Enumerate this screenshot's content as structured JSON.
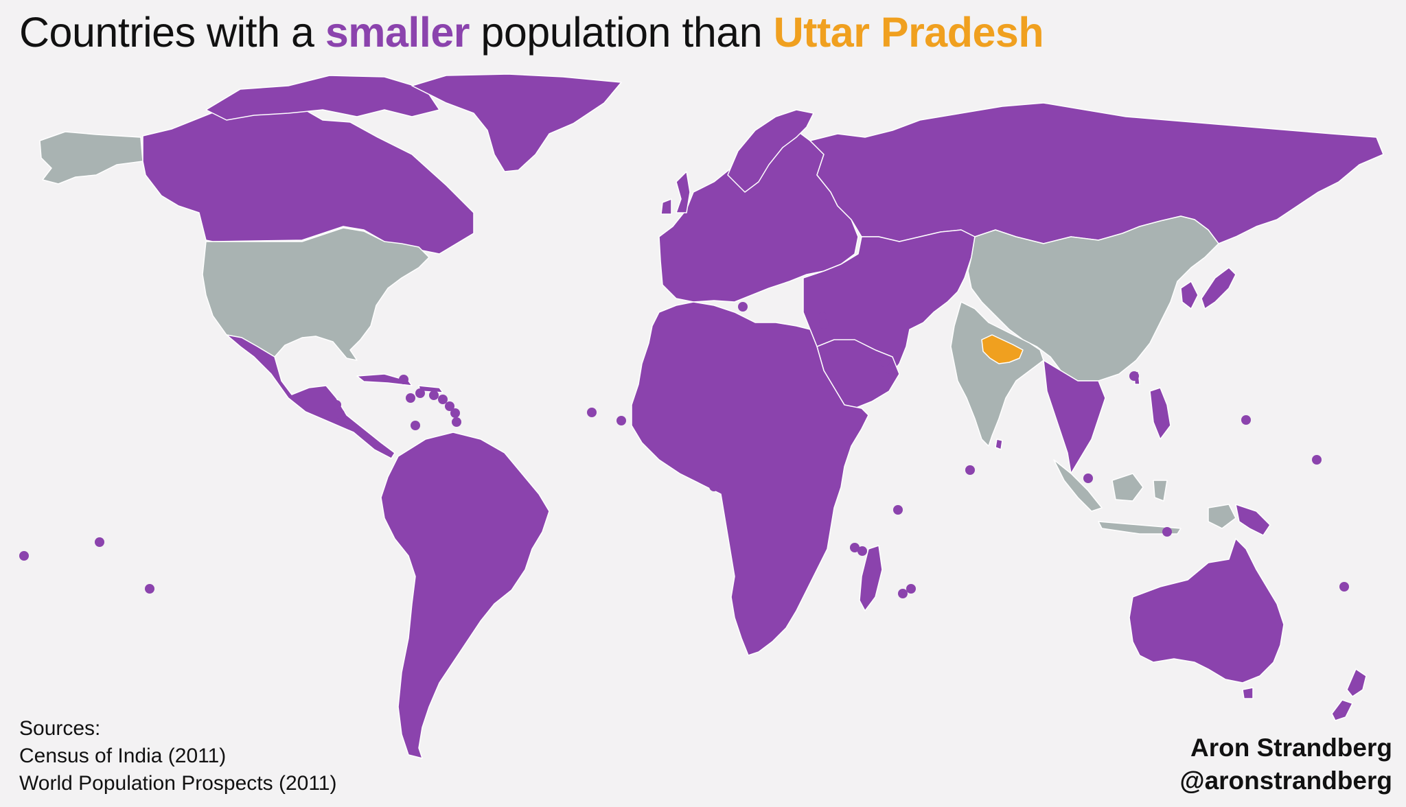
{
  "title": {
    "prefix": "Countries with a ",
    "highlight_smaller": "smaller",
    "middle": " population than ",
    "highlight_region": "Uttar Pradesh"
  },
  "legend_colors": {
    "smaller_population": "#8b43ad",
    "larger_population": "#a9b3b2",
    "uttar_pradesh": "#f0a01f",
    "background": "#f3f2f3"
  },
  "larger_countries": [
    "United States",
    "China",
    "India",
    "Indonesia"
  ],
  "highlighted_region": "Uttar Pradesh",
  "sources": {
    "heading": "Sources:",
    "items": [
      "Census of India (2011)",
      "World Population Prospects (2011)"
    ]
  },
  "author": {
    "name": "Aron Strandberg",
    "handle": "@aronstrandberg"
  }
}
